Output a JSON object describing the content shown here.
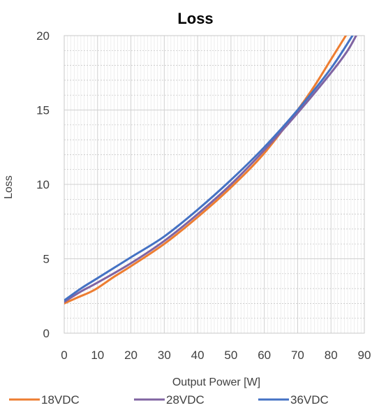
{
  "chart_data": {
    "type": "line",
    "title": "Loss",
    "xlabel": "Output Power [W]",
    "ylabel": "Loss",
    "xlim": [
      0,
      90
    ],
    "ylim": [
      0,
      20
    ],
    "x_ticks": [
      0,
      10,
      20,
      30,
      40,
      50,
      60,
      70,
      80,
      90
    ],
    "y_ticks": [
      0,
      5,
      10,
      15,
      20
    ],
    "grid": true,
    "legend_position": "bottom",
    "series": [
      {
        "name": "18VDC",
        "color": "#ED7D31",
        "points": [
          [
            0,
            2.0
          ],
          [
            4,
            2.4
          ],
          [
            9,
            2.9
          ],
          [
            15,
            3.8
          ],
          [
            20,
            4.5
          ],
          [
            30,
            6.0
          ],
          [
            40,
            7.8
          ],
          [
            50,
            9.8
          ],
          [
            60,
            12.1
          ],
          [
            70,
            15.0
          ],
          [
            75,
            16.6
          ],
          [
            80,
            18.4
          ],
          [
            85,
            20.2
          ]
        ]
      },
      {
        "name": "28VDC",
        "color": "#8064A2",
        "points": [
          [
            0,
            2.1
          ],
          [
            5,
            2.8
          ],
          [
            10,
            3.4
          ],
          [
            20,
            4.7
          ],
          [
            30,
            6.2
          ],
          [
            40,
            8.0
          ],
          [
            50,
            10.0
          ],
          [
            60,
            12.3
          ],
          [
            70,
            14.8
          ],
          [
            80,
            17.5
          ],
          [
            85,
            19.0
          ],
          [
            88,
            20.2
          ]
        ]
      },
      {
        "name": "36VDC",
        "color": "#4472C4",
        "points": [
          [
            0,
            2.2
          ],
          [
            5,
            3.0
          ],
          [
            10,
            3.7
          ],
          [
            20,
            5.1
          ],
          [
            30,
            6.5
          ],
          [
            40,
            8.3
          ],
          [
            50,
            10.3
          ],
          [
            60,
            12.5
          ],
          [
            70,
            15.0
          ],
          [
            80,
            17.8
          ],
          [
            87,
            20.2
          ]
        ]
      }
    ]
  }
}
